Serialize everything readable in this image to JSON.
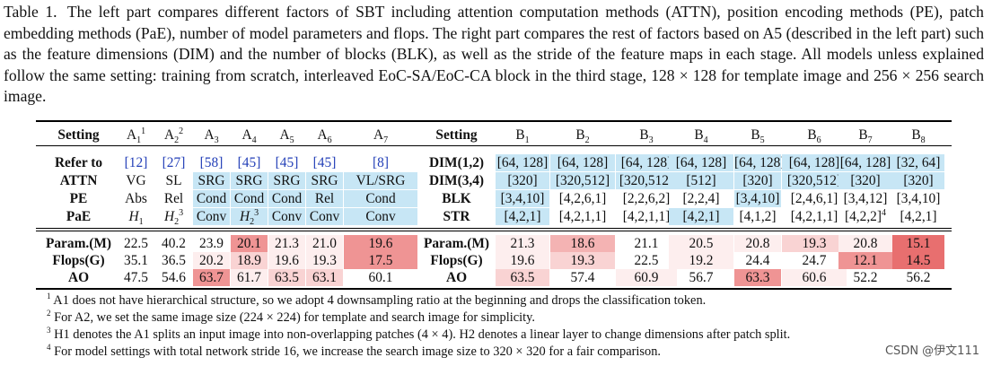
{
  "caption": {
    "label": "Table 1.",
    "text": "The left part compares different factors of SBT including attention computation methods (ATTN), position encoding methods (PE), patch embedding methods (PaE), number of model parameters and flops. The right part compares the rest of factors based on A5 (described in the left part) such as the feature dimensions (DIM) and the number of blocks (BLK), as well as the stride of the feature maps in each stage. All models unless explained follow the same setting: training from scratch, interleaved EoC-SA/EoC-CA block in the third stage, 128 × 128 for template image and 256 × 256 search image."
  },
  "left": {
    "header": [
      "Setting",
      "A1",
      "A2",
      "A3",
      "A4",
      "A5",
      "A6",
      "A7"
    ],
    "header_sup": [
      "",
      "1",
      "2",
      "",
      "",
      "",
      "",
      ""
    ],
    "rows": [
      {
        "label": "Refer to",
        "cells": [
          "[12]",
          "[27]",
          "[58]",
          "[45]",
          "[45]",
          "[45]",
          "[8]"
        ]
      },
      {
        "label": "ATTN",
        "cells": [
          "VG",
          "SL",
          "SRG",
          "SRG",
          "SRG",
          "SRG",
          "VL/SRG"
        ]
      },
      {
        "label": "PE",
        "cells": [
          "Abs",
          "Rel",
          "Cond",
          "Cond",
          "Cond",
          "Rel",
          "Cond"
        ]
      },
      {
        "label": "PaE",
        "cells": [
          "H1",
          "H2",
          "Conv",
          "H2",
          "Conv",
          "Conv",
          "Conv"
        ],
        "sup": [
          "",
          "3",
          "",
          "3",
          "",
          "",
          ""
        ]
      }
    ],
    "metrics": [
      {
        "label": "Param.(M)",
        "cells": [
          "22.5",
          "40.2",
          "23.9",
          "20.1",
          "21.3",
          "21.0",
          "19.6"
        ]
      },
      {
        "label": "Flops(G)",
        "cells": [
          "35.1",
          "36.5",
          "20.2",
          "18.9",
          "19.6",
          "19.3",
          "17.5"
        ]
      },
      {
        "label": "AO",
        "cells": [
          "47.5",
          "54.6",
          "63.7",
          "61.7",
          "63.5",
          "63.1",
          "60.1"
        ]
      }
    ]
  },
  "right": {
    "header": [
      "Setting",
      "B1",
      "B2",
      "B3",
      "B4",
      "B5",
      "B6",
      "B7",
      "B8"
    ],
    "rows": [
      {
        "label": "DIM(1,2)",
        "cells": [
          "[64, 128]",
          "[64, 128]",
          "[64, 128]",
          "[64, 128]",
          "[64, 128]",
          "[64, 128]",
          "[64, 128]",
          "[32, 64]"
        ]
      },
      {
        "label": "DIM(3,4)",
        "cells": [
          "[320]",
          "[320,512]",
          "[320,512]",
          "[512]",
          "[320]",
          "[320,512]",
          "[320]",
          "[320]"
        ]
      },
      {
        "label": "BLK",
        "cells": [
          "[3,4,10]",
          "[4,2,6,1]",
          "[2,2,6,2]",
          "[2,2,4]",
          "[3,4,10]",
          "[2,4,6,1]",
          "[3,4,12]",
          "[3,4,10]"
        ]
      },
      {
        "label": "STR",
        "cells": [
          "[4,2,1]",
          "[4,2,1,1]",
          "[4,2,1,1]",
          "[4,2,1]",
          "[4,1,2]",
          "[4,2,1,1]",
          "[4,2,2]",
          "[4,2,1]"
        ],
        "sup": [
          "",
          "",
          "",
          "",
          "",
          "",
          "4",
          ""
        ]
      }
    ],
    "metrics": [
      {
        "label": "Param.(M)",
        "cells": [
          "21.3",
          "18.6",
          "21.1",
          "20.5",
          "20.8",
          "19.3",
          "20.8",
          "15.1"
        ]
      },
      {
        "label": "Flops(G)",
        "cells": [
          "19.6",
          "19.3",
          "22.5",
          "19.2",
          "24.4",
          "24.7",
          "12.1",
          "14.5"
        ]
      },
      {
        "label": "AO",
        "cells": [
          "63.5",
          "57.4",
          "60.9",
          "56.7",
          "63.3",
          "60.6",
          "52.2",
          "56.2"
        ]
      }
    ]
  },
  "heat_colors": {
    "1": "#fdeeee",
    "2": "#f9d3d3",
    "3": "#f4b3b3",
    "4": "#ef9494",
    "5": "#e86f6f"
  },
  "heat_levels": {
    "left": [
      [
        0,
        0,
        0,
        4,
        1,
        1,
        4
      ],
      [
        0,
        0,
        1,
        2,
        1,
        1,
        4
      ],
      [
        0,
        0,
        4,
        1,
        2,
        2,
        0
      ]
    ],
    "right": [
      [
        1,
        3,
        0,
        1,
        1,
        2,
        1,
        5
      ],
      [
        1,
        2,
        0,
        1,
        0,
        0,
        4,
        5
      ],
      [
        2,
        0,
        1,
        0,
        4,
        1,
        0,
        0
      ]
    ]
  },
  "footnotes": [
    {
      "mark": "1",
      "text": "A1 does not have hierarchical structure, so we adopt 4 downsampling ratio at the beginning and drops the classification token."
    },
    {
      "mark": "2",
      "text": "For A2, we set the same image size (224 × 224) for template and search image for simplicity."
    },
    {
      "mark": "3",
      "text": "H1 denotes the A1 splits an input image into non-overlapping patches (4 × 4). H2 denotes a linear layer to change dimensions after patch split."
    },
    {
      "mark": "4",
      "text": "For model settings with total network stride 16, we increase the search image size to 320 × 320 for a fair comparison."
    }
  ],
  "watermark": "CSDN @伊文111"
}
